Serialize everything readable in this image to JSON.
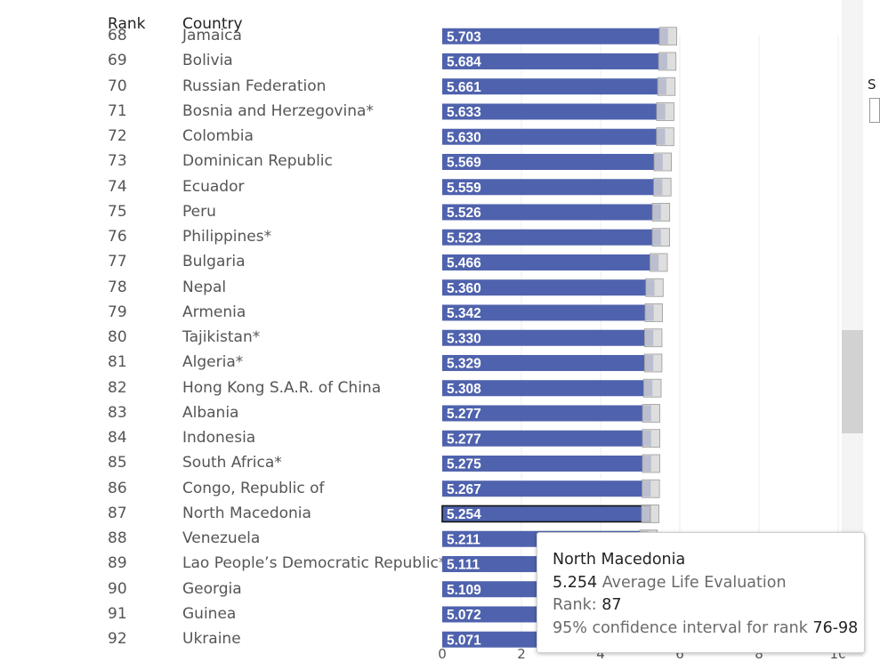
{
  "header": {
    "rank_label": "Rank",
    "country_label": "Country"
  },
  "chart_data": {
    "type": "bar",
    "orientation": "horizontal",
    "rows": [
      {
        "rank": "68",
        "country": "Jamaica",
        "value": 5.703,
        "label": "5.703"
      },
      {
        "rank": "69",
        "country": "Bolivia",
        "value": 5.684,
        "label": "5.684"
      },
      {
        "rank": "70",
        "country": "Russian Federation",
        "value": 5.661,
        "label": "5.661"
      },
      {
        "rank": "71",
        "country": "Bosnia and Herzegovina*",
        "value": 5.633,
        "label": "5.633"
      },
      {
        "rank": "72",
        "country": "Colombia",
        "value": 5.63,
        "label": "5.630"
      },
      {
        "rank": "73",
        "country": "Dominican Republic",
        "value": 5.569,
        "label": "5.569"
      },
      {
        "rank": "74",
        "country": "Ecuador",
        "value": 5.559,
        "label": "5.559"
      },
      {
        "rank": "75",
        "country": "Peru",
        "value": 5.526,
        "label": "5.526"
      },
      {
        "rank": "76",
        "country": "Philippines*",
        "value": 5.523,
        "label": "5.523"
      },
      {
        "rank": "77",
        "country": "Bulgaria",
        "value": 5.466,
        "label": "5.466"
      },
      {
        "rank": "78",
        "country": "Nepal",
        "value": 5.36,
        "label": "5.360"
      },
      {
        "rank": "79",
        "country": "Armenia",
        "value": 5.342,
        "label": "5.342"
      },
      {
        "rank": "80",
        "country": "Tajikistan*",
        "value": 5.33,
        "label": "5.330"
      },
      {
        "rank": "81",
        "country": "Algeria*",
        "value": 5.329,
        "label": "5.329"
      },
      {
        "rank": "82",
        "country": "Hong Kong S.A.R. of China",
        "value": 5.308,
        "label": "5.308"
      },
      {
        "rank": "83",
        "country": "Albania",
        "value": 5.277,
        "label": "5.277"
      },
      {
        "rank": "84",
        "country": "Indonesia",
        "value": 5.277,
        "label": "5.277"
      },
      {
        "rank": "85",
        "country": "South Africa*",
        "value": 5.275,
        "label": "5.275"
      },
      {
        "rank": "86",
        "country": "Congo, Republic of",
        "value": 5.267,
        "label": "5.267"
      },
      {
        "rank": "87",
        "country": "North Macedonia",
        "value": 5.254,
        "label": "5.254",
        "highlighted": true
      },
      {
        "rank": "88",
        "country": "Venezuela",
        "value": 5.211,
        "label": "5.211"
      },
      {
        "rank": "89",
        "country": "Lao People’s Democratic Republic*",
        "value": 5.111,
        "label": "5.111"
      },
      {
        "rank": "90",
        "country": "Georgia",
        "value": 5.109,
        "label": "5.109"
      },
      {
        "rank": "91",
        "country": "Guinea",
        "value": 5.072,
        "label": "5.072"
      },
      {
        "rank": "92",
        "country": "Ukraine",
        "value": 5.071,
        "label": "5.071"
      }
    ],
    "x_ticks": [
      "0",
      "2",
      "4",
      "6",
      "8",
      "10"
    ],
    "xlim": [
      0,
      10
    ],
    "grid": "vertical",
    "colors": {
      "bar": "#4f62ad",
      "error_bar": "#d6d6d6",
      "error_bar_edge": "#9a9a9a",
      "highlight_outline": "#111111",
      "grid": "#ececec"
    }
  },
  "tooltip": {
    "country": "North Macedonia",
    "value": "5.254",
    "value_label": "Average Life Evaluation",
    "rank_prefix": "Rank:",
    "rank": "87",
    "ci_label": "95% confidence interval for rank",
    "ci_range": "76-98"
  },
  "side_panel": {
    "letter": "S"
  }
}
